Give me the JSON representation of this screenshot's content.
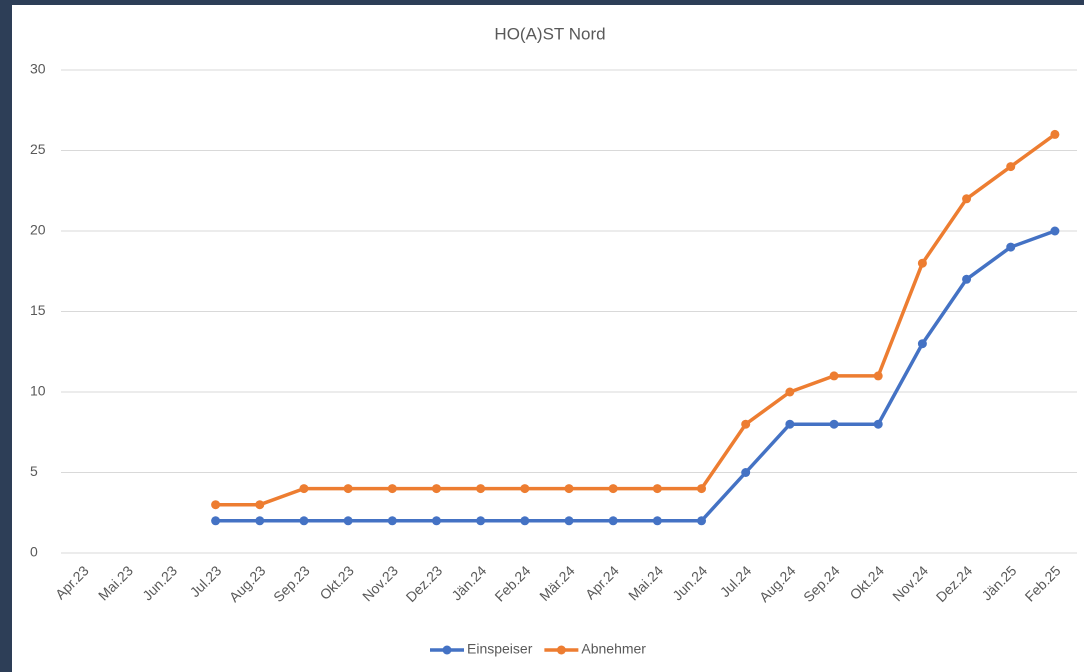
{
  "chart_data": {
    "type": "line",
    "title": "HO(A)ST Nord",
    "categories": [
      "Apr.23",
      "Mai.23",
      "Jun.23",
      "Jul.23",
      "Aug.23",
      "Sep.23",
      "Okt.23",
      "Nov.23",
      "Dez.23",
      "Jän.24",
      "Feb.24",
      "Mär.24",
      "Apr.24",
      "Mai.24",
      "Jun.24",
      "Jul.24",
      "Aug.24",
      "Sep.24",
      "Okt.24",
      "Nov.24",
      "Dez.24",
      "Jän.25",
      "Feb.25"
    ],
    "series": [
      {
        "name": "Einspeiser",
        "color": "#4472c4",
        "values": [
          null,
          null,
          null,
          2,
          2,
          2,
          2,
          2,
          2,
          2,
          2,
          2,
          2,
          2,
          2,
          5,
          8,
          8,
          8,
          13,
          17,
          19,
          20
        ]
      },
      {
        "name": "Abnehmer",
        "color": "#ed7d31",
        "values": [
          null,
          null,
          null,
          3,
          3,
          4,
          4,
          4,
          4,
          4,
          4,
          4,
          4,
          4,
          4,
          8,
          10,
          11,
          11,
          18,
          22,
          24,
          26
        ]
      }
    ],
    "ylim": [
      0,
      30
    ],
    "yticks": [
      0,
      5,
      10,
      15,
      20,
      25,
      30
    ],
    "grid": true,
    "legend": "bottom"
  }
}
